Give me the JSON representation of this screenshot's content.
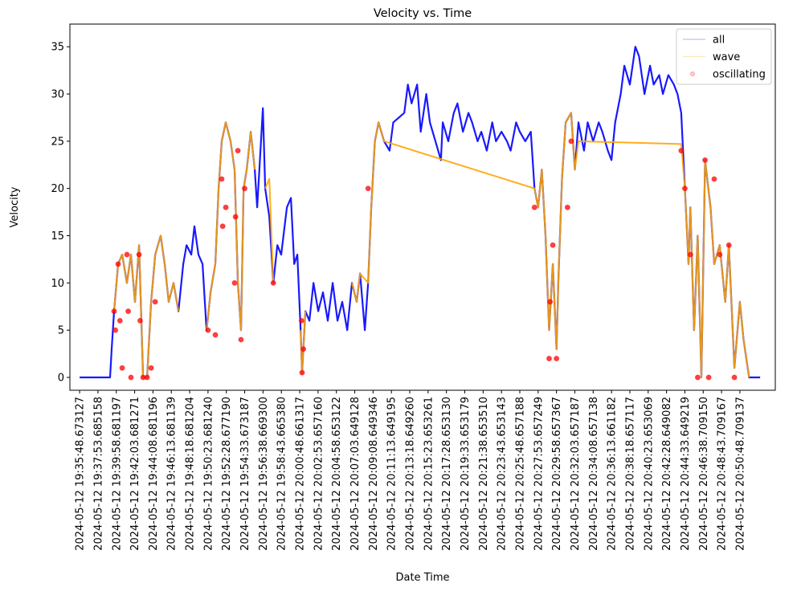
{
  "chart_data": {
    "type": "line",
    "title": "Velocity vs. Time",
    "x_label": "Date Time",
    "y_label": "Velocity",
    "xlim": [
      -0.53,
      37.93
    ],
    "ylim": [
      -1.36,
      37.4
    ],
    "yticks": [
      0,
      5,
      10,
      15,
      20,
      25,
      30,
      35
    ],
    "xticks": [
      {
        "value": 0,
        "label": "2024-05-12 19:35:48.673127"
      },
      {
        "value": 1,
        "label": "2024-05-12 19:37:53.685158"
      },
      {
        "value": 2,
        "label": "2024-05-12 19:39:58.681197"
      },
      {
        "value": 3,
        "label": "2024-05-12 19:42:03.681271"
      },
      {
        "value": 4,
        "label": "2024-05-12 19:44:08.681196"
      },
      {
        "value": 5,
        "label": "2024-05-12 19:46:13.681139"
      },
      {
        "value": 6,
        "label": "2024-05-12 19:48:18.681204"
      },
      {
        "value": 7,
        "label": "2024-05-12 19:50:23.681240"
      },
      {
        "value": 8,
        "label": "2024-05-12 19:52:28.677190"
      },
      {
        "value": 9,
        "label": "2024-05-12 19:54:33.673187"
      },
      {
        "value": 10,
        "label": "2024-05-12 19:56:38.669300"
      },
      {
        "value": 11,
        "label": "2024-05-12 19:58:43.665380"
      },
      {
        "value": 12,
        "label": "2024-05-12 20:00:48.661317"
      },
      {
        "value": 13,
        "label": "2024-05-12 20:02:53.657160"
      },
      {
        "value": 14,
        "label": "2024-05-12 20:04:58.653122"
      },
      {
        "value": 15,
        "label": "2024-05-12 20:07:03.649128"
      },
      {
        "value": 16,
        "label": "2024-05-12 20:09:08.649346"
      },
      {
        "value": 17,
        "label": "2024-05-12 20:11:13.649195"
      },
      {
        "value": 18,
        "label": "2024-05-12 20:13:18.649260"
      },
      {
        "value": 19,
        "label": "2024-05-12 20:15:23.653261"
      },
      {
        "value": 20,
        "label": "2024-05-12 20:17:28.653130"
      },
      {
        "value": 21,
        "label": "2024-05-12 20:19:33.653179"
      },
      {
        "value": 22,
        "label": "2024-05-12 20:21:38.653510"
      },
      {
        "value": 23,
        "label": "2024-05-12 20:23:43.653143"
      },
      {
        "value": 24,
        "label": "2024-05-12 20:25:48.657188"
      },
      {
        "value": 25,
        "label": "2024-05-12 20:27:53.657249"
      },
      {
        "value": 26,
        "label": "2024-05-12 20:29:58.657367"
      },
      {
        "value": 27,
        "label": "2024-05-12 20:32:03.657187"
      },
      {
        "value": 28,
        "label": "2024-05-12 20:34:08.657138"
      },
      {
        "value": 29,
        "label": "2024-05-12 20:36:13.661182"
      },
      {
        "value": 30,
        "label": "2024-05-12 20:38:18.657117"
      },
      {
        "value": 31,
        "label": "2024-05-12 20:40:23.653069"
      },
      {
        "value": 32,
        "label": "2024-05-12 20:42:28.649082"
      },
      {
        "value": 33,
        "label": "2024-05-12 20:44:33.649219"
      },
      {
        "value": 34,
        "label": "2024-05-12 20:46:38.709150"
      },
      {
        "value": 35,
        "label": "2024-05-12 20:48:43.709167"
      },
      {
        "value": 36,
        "label": "2024-05-12 20:50:48.709137"
      }
    ],
    "legend": "upper right",
    "series": [
      {
        "name": "all",
        "color": "#0000ff",
        "mode": "lines",
        "x": [
          0,
          1.66,
          1.75,
          1.88,
          2.1,
          2.32,
          2.58,
          2.8,
          3.02,
          3.24,
          3.46,
          3.68,
          3.9,
          4.12,
          4.42,
          4.64,
          4.86,
          5.12,
          5.39,
          5.65,
          5.83,
          6.09,
          6.26,
          6.48,
          6.7,
          6.92,
          7.14,
          7.4,
          7.58,
          7.75,
          7.97,
          8.23,
          8.45,
          8.63,
          8.8,
          8.94,
          9.11,
          9.33,
          9.55,
          9.68,
          9.86,
          9.99,
          10.12,
          10.34,
          10.56,
          10.78,
          10.99,
          11.3,
          11.52,
          11.7,
          11.87,
          12.05,
          12.13,
          12.31,
          12.53,
          12.75,
          13.01,
          13.27,
          13.53,
          13.8,
          14.06,
          14.32,
          14.59,
          14.85,
          15.11,
          15.29,
          15.55,
          15.73,
          15.9,
          16.1,
          16.3,
          16.6,
          16.9,
          17.1,
          17.7,
          17.9,
          18.1,
          18.4,
          18.6,
          18.9,
          19.1,
          19.4,
          19.7,
          19.8,
          20.1,
          20.4,
          20.6,
          20.9,
          21.2,
          21.4,
          21.7,
          21.9,
          22.2,
          22.5,
          22.7,
          23,
          23.3,
          23.5,
          23.8,
          24,
          24.3,
          24.6,
          24.8,
          25,
          25.2,
          25.4,
          25.6,
          25.8,
          26,
          26.1,
          26.3,
          26.5,
          26.8,
          27,
          27.2,
          27.5,
          27.7,
          28,
          28.3,
          28.5,
          28.8,
          29,
          29.2,
          29.5,
          29.7,
          30,
          30.3,
          30.5,
          30.8,
          31.1,
          31.3,
          31.6,
          31.8,
          32.1,
          32.4,
          32.6,
          32.8,
          33,
          33.2,
          33.3,
          33.5,
          33.7,
          33.9,
          34.1,
          34.4,
          34.6,
          34.9,
          35.2,
          35.4,
          35.7,
          36,
          36.2,
          36.5,
          37.1
        ],
        "values": [
          0,
          0,
          3,
          7,
          12,
          13,
          10,
          13,
          8,
          14,
          0,
          0,
          8,
          13,
          15,
          12,
          8,
          10,
          7,
          12,
          14,
          13,
          16,
          13,
          12,
          5,
          9,
          12,
          20,
          25,
          27,
          25,
          22,
          10,
          5,
          20,
          22,
          26,
          22,
          18,
          24,
          28.5,
          20,
          17,
          10,
          14,
          13,
          18,
          19,
          12,
          13,
          5,
          0.5,
          7,
          6,
          10,
          7,
          9,
          6,
          10,
          6,
          8,
          5,
          10,
          8,
          11,
          5,
          10,
          18,
          25,
          27,
          25,
          24,
          27,
          28,
          31,
          29,
          31,
          26,
          30,
          27,
          25,
          23,
          27,
          25,
          28,
          29,
          26,
          28,
          27,
          25,
          26,
          24,
          27,
          25,
          26,
          25,
          24,
          27,
          26,
          25,
          26,
          20,
          18,
          22,
          15,
          5,
          12,
          3,
          10,
          21,
          27,
          28,
          22,
          27,
          24,
          27,
          25,
          27,
          26,
          24,
          23,
          27,
          30,
          33,
          31,
          35,
          34,
          30,
          33,
          31,
          32,
          30,
          32,
          31,
          30,
          28,
          20,
          12,
          18,
          5,
          15,
          0,
          23,
          18,
          12,
          14,
          8,
          14,
          1,
          8,
          4,
          0,
          0
        ]
      },
      {
        "name": "wave",
        "color": "#ffa500",
        "mode": "lines",
        "x": [
          1.88,
          2.1,
          2.32,
          2.58,
          2.8,
          3.02,
          3.24,
          3.46,
          3.68,
          3.9,
          4.12,
          4.42,
          4.64,
          4.86,
          5.12,
          5.39,
          5.4,
          6.92,
          7.14,
          7.4,
          7.58,
          7.75,
          7.97,
          8.23,
          8.45,
          8.63,
          8.8,
          8.94,
          9.11,
          9.33,
          9.55,
          9.6,
          10.12,
          10.34,
          10.56,
          10.6,
          12.05,
          12.13,
          12.31,
          12.35,
          14.85,
          15.11,
          15.29,
          15.73,
          15.9,
          16.1,
          16.3,
          16.6,
          24.8,
          25,
          25.2,
          25.4,
          25.6,
          25.8,
          26,
          26.1,
          26.3,
          26.5,
          26.8,
          27,
          27.2,
          32.8,
          33,
          33.2,
          33.3,
          33.5,
          33.7,
          33.9,
          34.1,
          34.4,
          34.6,
          34.9,
          35.2,
          35.4,
          35.7,
          36,
          36.2,
          36.5
        ],
        "values": [
          7,
          12,
          13,
          10,
          13,
          8,
          14,
          0,
          0,
          8,
          13,
          15,
          12,
          8,
          10,
          7,
          null,
          5,
          9,
          12,
          20,
          25,
          27,
          25,
          22,
          10,
          5,
          20,
          22,
          26,
          22,
          null,
          20,
          21,
          10,
          null,
          5,
          0.5,
          7,
          null,
          10,
          8,
          11,
          10,
          18,
          25,
          27,
          25,
          20,
          18,
          22,
          15,
          5,
          12,
          3,
          10,
          21,
          27,
          28,
          22,
          25,
          24.7,
          20,
          12,
          18,
          5,
          15,
          0,
          23,
          18,
          12,
          14,
          8,
          14,
          1,
          8,
          4,
          0
        ]
      },
      {
        "name": "oscillating",
        "color": "#ff0000",
        "mode": "markers",
        "x": [
          1.88,
          1.95,
          2.1,
          2.2,
          2.32,
          2.58,
          2.65,
          2.8,
          3.24,
          3.3,
          3.46,
          3.68,
          3.9,
          4.12,
          7.0,
          7.4,
          7.75,
          7.8,
          7.97,
          8.45,
          8.5,
          8.63,
          8.8,
          9.0,
          10.56,
          12.1,
          12.13,
          12.2,
          15.73,
          24.8,
          25.6,
          25.65,
          25.8,
          26.0,
          26.6,
          26.8,
          32.8,
          33,
          33.3,
          33.7,
          34.1,
          34.3,
          34.6,
          34.9,
          35.4,
          35.7
        ],
        "values": [
          7,
          5,
          12,
          6,
          1,
          13,
          7,
          0,
          13,
          6,
          0,
          0,
          1,
          8,
          5,
          4.5,
          21,
          16,
          18,
          10,
          17,
          24,
          4,
          20,
          10,
          6,
          0.5,
          3,
          20,
          18,
          2,
          8,
          14,
          2,
          18,
          25,
          24,
          20,
          13,
          0,
          23,
          0,
          21,
          13,
          14,
          0
        ]
      }
    ]
  }
}
